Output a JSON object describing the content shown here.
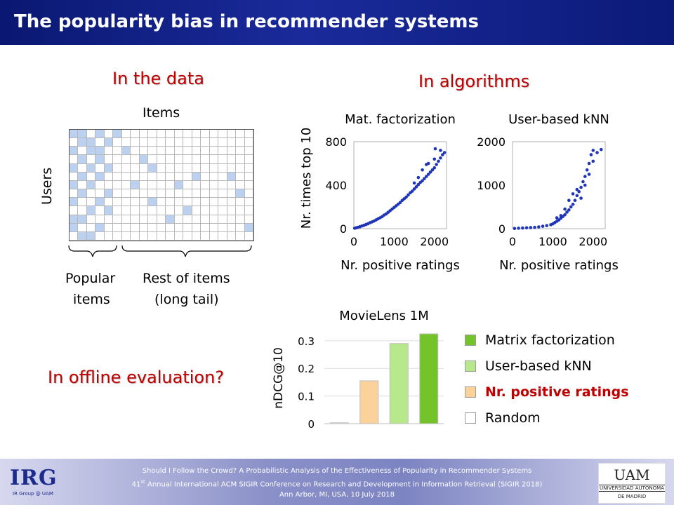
{
  "header": {
    "title": "The popularity bias in recommender systems"
  },
  "sections": {
    "data": "In the data",
    "algorithms": "In algorithms",
    "offline": "In offline evaluation?"
  },
  "matrix": {
    "items_label": "Items",
    "users_label": "Users",
    "popular_label_1": "Popular",
    "popular_label_2": "items",
    "rest_label_1": "Rest of items",
    "rest_label_2": "(long tail)",
    "fill_color": "#bcd0f0"
  },
  "chart_data": [
    {
      "type": "scatter",
      "title": "Mat. factorization",
      "xlabel": "Nr. positive ratings",
      "ylabel": "Nr. times top 10",
      "xlim": [
        0,
        2300
      ],
      "ylim": [
        0,
        800
      ],
      "xticks": [
        "0",
        "1000",
        "2000"
      ],
      "yticks": [
        "0",
        "400",
        "800"
      ],
      "color": "#1f35b8",
      "points": [
        [
          20,
          4
        ],
        [
          60,
          8
        ],
        [
          100,
          12
        ],
        [
          150,
          18
        ],
        [
          200,
          25
        ],
        [
          250,
          30
        ],
        [
          300,
          38
        ],
        [
          350,
          45
        ],
        [
          400,
          55
        ],
        [
          450,
          62
        ],
        [
          500,
          70
        ],
        [
          550,
          80
        ],
        [
          600,
          90
        ],
        [
          650,
          100
        ],
        [
          700,
          110
        ],
        [
          750,
          125
        ],
        [
          800,
          135
        ],
        [
          850,
          150
        ],
        [
          900,
          165
        ],
        [
          950,
          180
        ],
        [
          1000,
          195
        ],
        [
          1050,
          210
        ],
        [
          1100,
          225
        ],
        [
          1150,
          240
        ],
        [
          1200,
          260
        ],
        [
          1250,
          275
        ],
        [
          1300,
          290
        ],
        [
          1350,
          310
        ],
        [
          1400,
          330
        ],
        [
          1450,
          345
        ],
        [
          1500,
          365
        ],
        [
          1550,
          385
        ],
        [
          1600,
          405
        ],
        [
          1650,
          425
        ],
        [
          1700,
          440
        ],
        [
          1750,
          460
        ],
        [
          1800,
          480
        ],
        [
          1850,
          500
        ],
        [
          1900,
          520
        ],
        [
          1950,
          540
        ],
        [
          2000,
          560
        ],
        [
          2050,
          590
        ],
        [
          2100,
          620
        ],
        [
          2150,
          650
        ],
        [
          2200,
          680
        ],
        [
          1800,
          590
        ],
        [
          2000,
          640
        ],
        [
          2150,
          720
        ],
        [
          2020,
          735
        ],
        [
          1600,
          470
        ],
        [
          1700,
          540
        ],
        [
          1850,
          600
        ],
        [
          1500,
          420
        ],
        [
          2250,
          700
        ]
      ]
    },
    {
      "type": "scatter",
      "title": "User-based kNN",
      "xlabel": "Nr. positive ratings",
      "ylabel": "",
      "xlim": [
        0,
        2300
      ],
      "ylim": [
        0,
        2000
      ],
      "xticks": [
        "0",
        "1000",
        "2000"
      ],
      "yticks": [
        "0",
        "1000",
        "2000"
      ],
      "color": "#1f35b8",
      "points": [
        [
          50,
          5
        ],
        [
          150,
          10
        ],
        [
          250,
          15
        ],
        [
          350,
          20
        ],
        [
          450,
          25
        ],
        [
          550,
          30
        ],
        [
          650,
          40
        ],
        [
          750,
          55
        ],
        [
          850,
          70
        ],
        [
          950,
          90
        ],
        [
          1000,
          110
        ],
        [
          1050,
          140
        ],
        [
          1100,
          170
        ],
        [
          1150,
          200
        ],
        [
          1200,
          240
        ],
        [
          1250,
          280
        ],
        [
          1300,
          320
        ],
        [
          1350,
          380
        ],
        [
          1400,
          430
        ],
        [
          1450,
          500
        ],
        [
          1500,
          560
        ],
        [
          1550,
          650
        ],
        [
          1600,
          760
        ],
        [
          1650,
          850
        ],
        [
          1700,
          950
        ],
        [
          1750,
          1080
        ],
        [
          1800,
          1200
        ],
        [
          1850,
          1350
        ],
        [
          1900,
          1500
        ],
        [
          1950,
          1700
        ],
        [
          2000,
          1800
        ],
        [
          2100,
          1750
        ],
        [
          2200,
          1820
        ],
        [
          1500,
          800
        ],
        [
          1400,
          650
        ],
        [
          1600,
          900
        ],
        [
          1700,
          700
        ],
        [
          1800,
          1000
        ],
        [
          1900,
          1250
        ],
        [
          2000,
          1550
        ],
        [
          1300,
          450
        ],
        [
          1200,
          300
        ],
        [
          1100,
          250
        ]
      ]
    },
    {
      "type": "bar",
      "title": "MovieLens 1M",
      "ylabel": "nDCG@10",
      "ylim": [
        0,
        0.33
      ],
      "yticks": [
        "0",
        "0.1",
        "0.2",
        "0.3"
      ],
      "categories": [
        "Random",
        "Nr. positive ratings",
        "User-based kNN",
        "Matrix factorization"
      ],
      "values": [
        0.003,
        0.155,
        0.29,
        0.325
      ],
      "colors": [
        "#ffffff",
        "#fbd39a",
        "#b7e88b",
        "#74c32a"
      ],
      "legend": [
        {
          "label": "Matrix factorization",
          "color": "#74c32a"
        },
        {
          "label": "User-based kNN",
          "color": "#b7e88b"
        },
        {
          "label": "Nr. positive ratings",
          "color": "#fbd39a"
        },
        {
          "label": "Random",
          "color": "#ffffff"
        }
      ],
      "legend_highlight_color": "#c00000"
    }
  ],
  "footer": {
    "line1": "Should I Follow the Crowd? A Probabilistic Analysis of the Effectiveness of Popularity in Recommender Systems",
    "line2_pre": "41",
    "line2_sup": "st",
    "line2_post": " Annual International ACM SIGIR Conference on Research and Development in Information Retrieval (SIGIR 2018)",
    "line3": "Ann Arbor, MI, USA, 10 July 2018",
    "logo_left": "IRG",
    "logo_left_sub": "IR Group @ UAM",
    "logo_right": "UAM",
    "logo_right_sub1": "UNIVERSIDAD AUTONOMA",
    "logo_right_sub2": "DE MADRID"
  }
}
